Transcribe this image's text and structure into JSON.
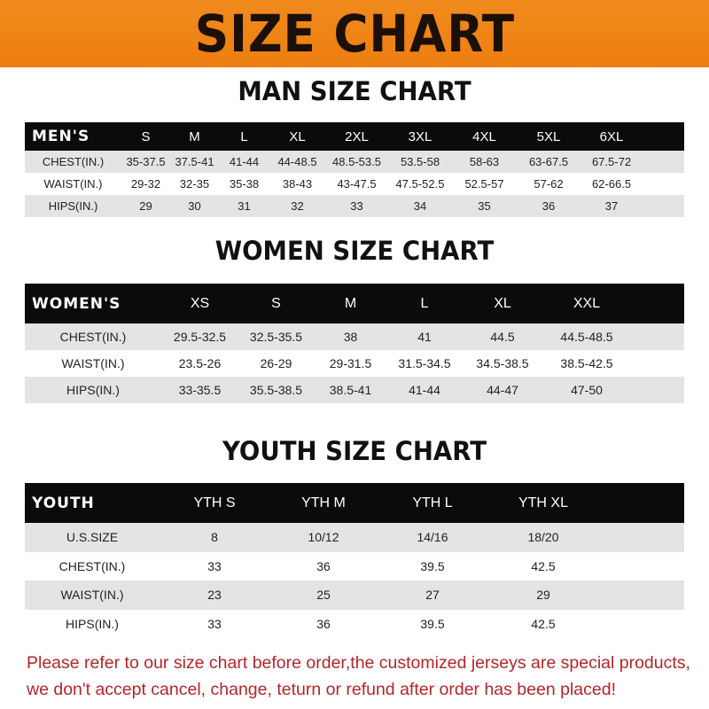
{
  "banner": "SIZE CHART",
  "men": {
    "title": "MAN SIZE CHART",
    "header": [
      "MEN'S",
      "S",
      "M",
      "L",
      "XL",
      "2XL",
      "3XL",
      "4XL",
      "5XL",
      "6XL"
    ],
    "rows": [
      [
        "CHEST(IN.)",
        "35-37.5",
        "37.5-41",
        "41-44",
        "44-48.5",
        "48.5-53.5",
        "53.5-58",
        "58-63",
        "63-67.5",
        "67.5-72"
      ],
      [
        "WAIST(IN.)",
        "29-32",
        "32-35",
        "35-38",
        "38-43",
        "43-47.5",
        "47.5-52.5",
        "52.5-57",
        "57-62",
        "62-66.5"
      ],
      [
        "HIPS(IN.)",
        "29",
        "30",
        "31",
        "32",
        "33",
        "34",
        "35",
        "36",
        "37"
      ]
    ]
  },
  "women": {
    "title": "WOMEN SIZE CHART",
    "header": [
      "WOMEN'S",
      "XS",
      "S",
      "M",
      "L",
      "XL",
      "XXL"
    ],
    "rows": [
      [
        "CHEST(IN.)",
        "29.5-32.5",
        "32.5-35.5",
        "38",
        "41",
        "44.5",
        "44.5-48.5"
      ],
      [
        "WAIST(IN.)",
        "23.5-26",
        "26-29",
        "29-31.5",
        "31.5-34.5",
        "34.5-38.5",
        "38.5-42.5"
      ],
      [
        "HIPS(IN.)",
        "33-35.5",
        "35.5-38.5",
        "38.5-41",
        "41-44",
        "44-47",
        "47-50"
      ]
    ]
  },
  "youth": {
    "title": "YOUTH SIZE CHART",
    "header": [
      "YOUTH",
      "YTH S",
      "YTH M",
      "YTH L",
      "YTH XL"
    ],
    "rows": [
      [
        "U.S.SIZE",
        "8",
        "10/12",
        "14/16",
        "18/20"
      ],
      [
        "CHEST(IN.)",
        "33",
        "36",
        "39.5",
        "42.5"
      ],
      [
        "WAIST(IN.)",
        "23",
        "25",
        "27",
        "29"
      ],
      [
        "HIPS(IN.)",
        "33",
        "36",
        "39.5",
        "42.5"
      ]
    ]
  },
  "note": {
    "line1": "Please refer to our size chart before order,the customized jerseys are special products,",
    "line2": "we don't accept cancel, change, teturn or refund after order has been placed!"
  },
  "colors": {
    "banner": "#ef8318",
    "header_row": "#0c0a0a",
    "stripe": "#e4e4e4",
    "note": "#b3262a"
  }
}
